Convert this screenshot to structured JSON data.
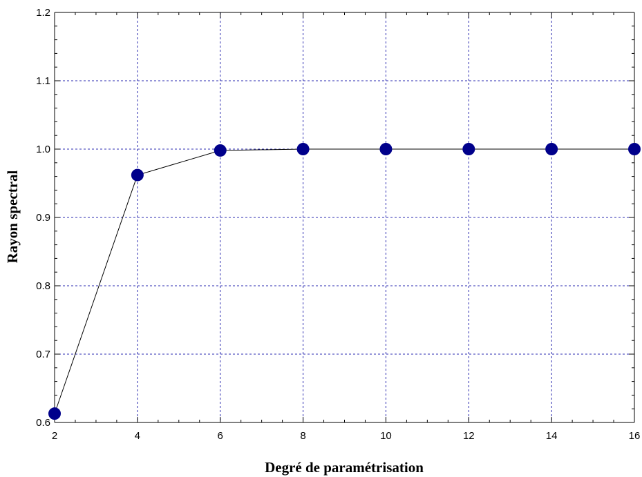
{
  "chart_data": {
    "type": "line",
    "title": "",
    "xlabel": "Degré de paramétrisation",
    "ylabel": "Rayon spectral",
    "xlim": [
      2,
      16
    ],
    "ylim": [
      0.6,
      1.2
    ],
    "x_ticks": [
      2,
      4,
      6,
      8,
      10,
      12,
      14,
      16
    ],
    "x_tick_labels": [
      "2",
      "4",
      "6",
      "8",
      "10",
      "12",
      "14",
      "16"
    ],
    "y_ticks": [
      0.6,
      0.7,
      0.8,
      0.9,
      1.0,
      1.1,
      1.2
    ],
    "y_tick_labels": [
      "0.6",
      "0.7",
      "0.8",
      "0.9",
      "1.0",
      "1.1",
      "1.2"
    ],
    "grid": true,
    "legend": "none",
    "series": [
      {
        "x": [
          2,
          4,
          6,
          8,
          10,
          12,
          14,
          16
        ],
        "y": [
          0.613,
          0.962,
          0.998,
          1.0,
          1.0,
          1.0,
          1.0,
          1.0
        ],
        "line_color": "#000000",
        "marker_color": "#00008b",
        "marker": "circle"
      }
    ],
    "colors": {
      "grid": "#2b2bb0",
      "axis": "#000000",
      "marker": "#00008b"
    }
  }
}
